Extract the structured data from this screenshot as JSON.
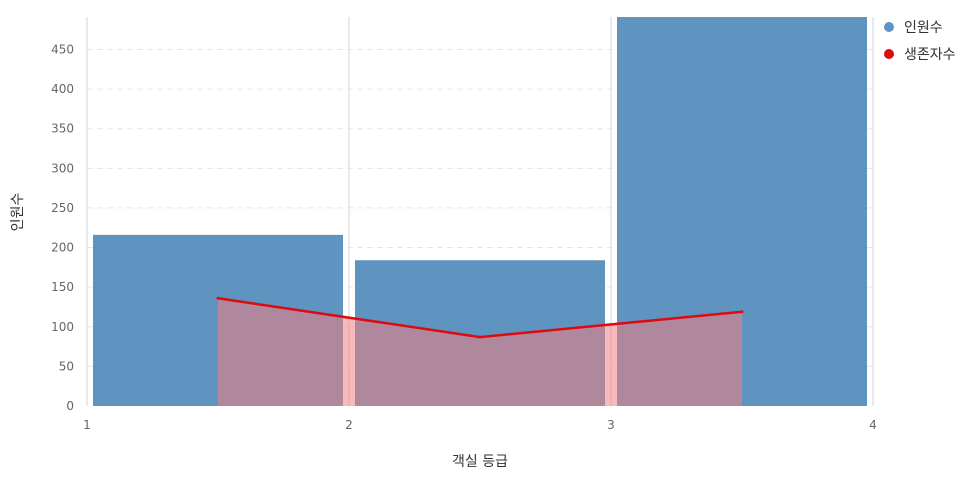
{
  "chart_data": {
    "type": "bar",
    "xlabel": "객실 등급",
    "ylabel": "인원수",
    "xlim": [
      1,
      4
    ],
    "ylim": [
      0,
      491
    ],
    "x_ticks": [
      "1",
      "2",
      "3",
      "4"
    ],
    "y_ticks": [
      0,
      50,
      100,
      150,
      200,
      250,
      300,
      350,
      400,
      450
    ],
    "grid": true,
    "legend_position": "top-right",
    "series": [
      {
        "name": "인원수",
        "kind": "bar",
        "color": "#5f93c0",
        "bins": [
          {
            "x0": 1,
            "x1": 2,
            "value": 216
          },
          {
            "x0": 2,
            "x1": 3,
            "value": 184
          },
          {
            "x0": 3,
            "x1": 4,
            "value": 491
          }
        ]
      },
      {
        "name": "생존자수",
        "kind": "area-line",
        "color": "#dd0b10",
        "fill": "#f08080",
        "points": [
          {
            "x": 1.5,
            "y": 136
          },
          {
            "x": 2.5,
            "y": 87
          },
          {
            "x": 3.5,
            "y": 119
          }
        ]
      }
    ]
  }
}
